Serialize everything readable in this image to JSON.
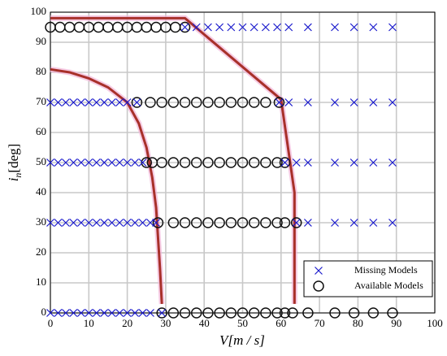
{
  "chart_data": {
    "type": "scatter",
    "xlabel": "V[m / s]",
    "ylabel": [
      "i",
      "n",
      "[deg]"
    ],
    "xlim": [
      0,
      100
    ],
    "xticks": [
      0,
      10,
      20,
      30,
      40,
      50,
      60,
      70,
      80,
      90,
      100
    ],
    "ylim": [
      0,
      100
    ],
    "yticks": [
      0,
      10,
      20,
      30,
      40,
      50,
      60,
      70,
      80,
      90,
      100
    ],
    "grid": true,
    "legend": "lower right",
    "series": [
      {
        "name": "Missing Models",
        "marker": "x",
        "color": "#1a1acc",
        "points": [
          [
            35,
            95
          ],
          [
            38,
            95
          ],
          [
            41,
            95
          ],
          [
            44,
            95
          ],
          [
            47,
            95
          ],
          [
            50,
            95
          ],
          [
            53,
            95
          ],
          [
            56,
            95
          ],
          [
            59,
            95
          ],
          [
            62,
            95
          ],
          [
            67,
            95
          ],
          [
            74,
            95
          ],
          [
            79,
            95
          ],
          [
            84,
            95
          ],
          [
            89,
            95
          ],
          [
            0,
            70
          ],
          [
            2,
            70
          ],
          [
            4,
            70
          ],
          [
            6,
            70
          ],
          [
            8,
            70
          ],
          [
            10,
            70
          ],
          [
            12,
            70
          ],
          [
            14,
            70
          ],
          [
            16,
            70
          ],
          [
            18,
            70
          ],
          [
            20,
            70
          ],
          [
            22.5,
            70
          ],
          [
            59.5,
            70
          ],
          [
            62,
            70
          ],
          [
            67,
            70
          ],
          [
            74,
            70
          ],
          [
            79,
            70
          ],
          [
            84,
            70
          ],
          [
            89,
            70
          ],
          [
            0,
            50
          ],
          [
            2,
            50
          ],
          [
            4,
            50
          ],
          [
            6,
            50
          ],
          [
            8,
            50
          ],
          [
            10,
            50
          ],
          [
            12,
            50
          ],
          [
            14,
            50
          ],
          [
            16,
            50
          ],
          [
            18,
            50
          ],
          [
            20,
            50
          ],
          [
            22,
            50
          ],
          [
            24,
            50
          ],
          [
            61,
            50
          ],
          [
            64,
            50
          ],
          [
            67,
            50
          ],
          [
            74,
            50
          ],
          [
            79,
            50
          ],
          [
            84,
            50
          ],
          [
            89,
            50
          ],
          [
            0,
            30
          ],
          [
            2,
            30
          ],
          [
            4,
            30
          ],
          [
            6,
            30
          ],
          [
            8,
            30
          ],
          [
            10,
            30
          ],
          [
            12,
            30
          ],
          [
            14,
            30
          ],
          [
            16,
            30
          ],
          [
            18,
            30
          ],
          [
            20,
            30
          ],
          [
            22,
            30
          ],
          [
            24,
            30
          ],
          [
            26,
            30
          ],
          [
            27.5,
            30
          ],
          [
            64,
            30
          ],
          [
            67,
            30
          ],
          [
            74,
            30
          ],
          [
            79,
            30
          ],
          [
            84,
            30
          ],
          [
            89,
            30
          ],
          [
            0,
            0
          ],
          [
            2,
            0
          ],
          [
            4,
            0
          ],
          [
            6,
            0
          ],
          [
            8,
            0
          ],
          [
            10,
            0
          ],
          [
            12,
            0
          ],
          [
            14,
            0
          ],
          [
            16,
            0
          ],
          [
            18,
            0
          ],
          [
            20,
            0
          ],
          [
            22,
            0
          ],
          [
            24,
            0
          ],
          [
            26,
            0
          ],
          [
            29,
            0
          ]
        ]
      },
      {
        "name": "Available Models",
        "marker": "o",
        "color": "#111111",
        "points": [
          [
            0,
            95
          ],
          [
            2.5,
            95
          ],
          [
            5,
            95
          ],
          [
            7.5,
            95
          ],
          [
            10,
            95
          ],
          [
            12.5,
            95
          ],
          [
            15,
            95
          ],
          [
            17.5,
            95
          ],
          [
            20,
            95
          ],
          [
            22.5,
            95
          ],
          [
            25,
            95
          ],
          [
            27.5,
            95
          ],
          [
            30,
            95
          ],
          [
            32.5,
            95
          ],
          [
            35,
            95
          ],
          [
            22.5,
            70
          ],
          [
            26,
            70
          ],
          [
            29,
            70
          ],
          [
            32,
            70
          ],
          [
            35,
            70
          ],
          [
            38,
            70
          ],
          [
            41,
            70
          ],
          [
            44,
            70
          ],
          [
            47,
            70
          ],
          [
            50,
            70
          ],
          [
            53,
            70
          ],
          [
            56,
            70
          ],
          [
            59.5,
            70
          ],
          [
            25,
            50
          ],
          [
            26.5,
            50
          ],
          [
            29,
            50
          ],
          [
            32,
            50
          ],
          [
            35,
            50
          ],
          [
            38,
            50
          ],
          [
            41,
            50
          ],
          [
            44,
            50
          ],
          [
            47,
            50
          ],
          [
            50,
            50
          ],
          [
            53,
            50
          ],
          [
            56,
            50
          ],
          [
            59,
            50
          ],
          [
            61,
            50
          ],
          [
            28,
            30
          ],
          [
            32,
            30
          ],
          [
            35,
            30
          ],
          [
            38,
            30
          ],
          [
            41,
            30
          ],
          [
            44,
            30
          ],
          [
            47,
            30
          ],
          [
            50,
            30
          ],
          [
            53,
            30
          ],
          [
            56,
            30
          ],
          [
            59,
            30
          ],
          [
            61,
            30
          ],
          [
            64,
            30
          ],
          [
            29,
            0
          ],
          [
            32,
            0
          ],
          [
            35,
            0
          ],
          [
            38,
            0
          ],
          [
            41,
            0
          ],
          [
            44,
            0
          ],
          [
            47,
            0
          ],
          [
            50,
            0
          ],
          [
            53,
            0
          ],
          [
            56,
            0
          ],
          [
            59,
            0
          ],
          [
            61,
            0
          ],
          [
            63,
            0
          ],
          [
            67,
            0
          ],
          [
            74,
            0
          ],
          [
            79,
            0
          ],
          [
            84,
            0
          ],
          [
            89,
            0
          ]
        ]
      }
    ],
    "curves": [
      {
        "color": "#a8302a",
        "points": [
          [
            0,
            98
          ],
          [
            35,
            98
          ],
          [
            60,
            71
          ],
          [
            63.5,
            40
          ],
          [
            63.5,
            3
          ]
        ]
      },
      {
        "color": "#a8302a",
        "points": [
          [
            0,
            81
          ],
          [
            5,
            80
          ],
          [
            10,
            78
          ],
          [
            15,
            75
          ],
          [
            20,
            70
          ],
          [
            23,
            63
          ],
          [
            25,
            55
          ],
          [
            26.5,
            45
          ],
          [
            27.5,
            35
          ],
          [
            28.5,
            15
          ],
          [
            29,
            3
          ]
        ]
      }
    ]
  }
}
